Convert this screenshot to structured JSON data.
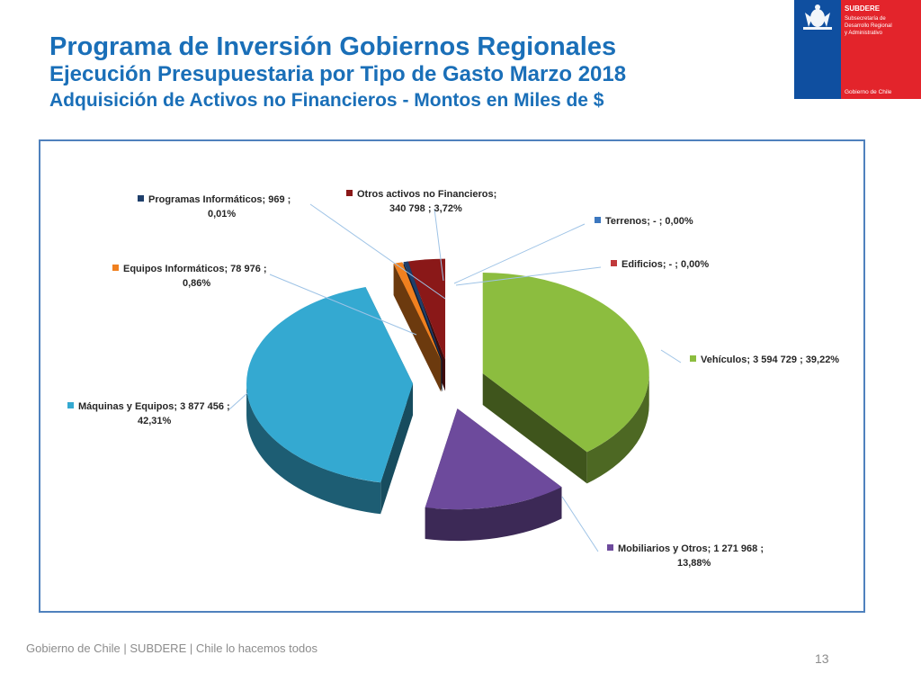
{
  "header": {
    "title": "Programa de Inversión Gobiernos Regionales",
    "subtitle": "Ejecución Presupuestaria por Tipo de Gasto Marzo 2018",
    "subtitle2": "Adquisición de Activos no Financieros - Montos en Miles de $"
  },
  "logo": {
    "org": "SUBDERE",
    "line1": "Subsecretaría de",
    "line2": "Desarrollo Regional",
    "line3": "y Administrativo",
    "gov": "Gobierno de Chile",
    "colors": {
      "blue": "#0f4fa0",
      "red": "#e3242b"
    }
  },
  "footer": {
    "text": "Gobierno de Chile | SUBDERE | Chile lo hacemos todos",
    "page": "13"
  },
  "chart_data": {
    "type": "pie",
    "style": "3d-exploded",
    "units": "Miles de $",
    "slices": [
      {
        "name": "Vehículos",
        "value_text": "3 594 729",
        "value": 3594729,
        "pct": "39,22%",
        "color": "#8cbd3f"
      },
      {
        "name": "Mobiliarios y Otros",
        "value_text": "1 271 968",
        "value": 1271968,
        "pct": "13,88%",
        "color": "#6d4a9c"
      },
      {
        "name": "Máquinas y Equipos",
        "value_text": "3 877 456",
        "value": 3877456,
        "pct": "42,31%",
        "color": "#34a9d1"
      },
      {
        "name": "Equipos Informáticos",
        "value_text": "78 976",
        "value": 78976,
        "pct": "0,86%",
        "color": "#f0801f"
      },
      {
        "name": "Programas Informáticos",
        "value_text": "969",
        "value": 969,
        "pct": "0,01%",
        "color": "#1f3f6b"
      },
      {
        "name": "Otros activos no Financieros",
        "value_text": "340 798",
        "value": 340798,
        "pct": "3,72%",
        "color": "#8a1818"
      },
      {
        "name": "Terrenos",
        "value_text": "-",
        "value": 0,
        "pct": "0,00%",
        "color": "#3c77bf"
      },
      {
        "name": "Edificios",
        "value_text": "-",
        "value": 0,
        "pct": "0,00%",
        "color": "#c0393b"
      }
    ]
  }
}
